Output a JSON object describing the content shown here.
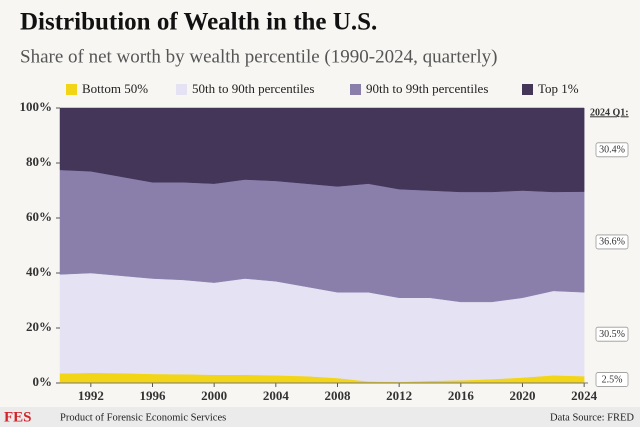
{
  "chart_data": {
    "type": "stacked-area",
    "title": "Distribution of Wealth in the U.S.",
    "subtitle": "Share of net worth by wealth percentile (1990-2024, quarterly)",
    "x": [
      1990,
      1992,
      1994,
      1996,
      1998,
      2000,
      2002,
      2004,
      2006,
      2008,
      2010,
      2012,
      2014,
      2016,
      2018,
      2020,
      2022,
      2024
    ],
    "xlim": [
      1990,
      2024.25
    ],
    "xticks": [
      1992,
      1996,
      2000,
      2004,
      2008,
      2012,
      2016,
      2020,
      2024
    ],
    "ylim": [
      0,
      100
    ],
    "yticks": [
      {
        "value": 0,
        "label": "0%"
      },
      {
        "value": 20,
        "label": "20%"
      },
      {
        "value": 40,
        "label": "40%"
      },
      {
        "value": 60,
        "label": "60%"
      },
      {
        "value": 80,
        "label": "80%"
      },
      {
        "value": 100,
        "label": "100%"
      }
    ],
    "series": [
      {
        "name": "Bottom 50%",
        "color": "#f3d517",
        "end_label": "2.5%",
        "values": [
          3.5,
          3.7,
          3.6,
          3.3,
          3.2,
          3.0,
          3.0,
          2.8,
          2.5,
          1.8,
          0.6,
          0.4,
          0.8,
          1.0,
          1.4,
          2.0,
          2.8,
          2.5
        ]
      },
      {
        "name": "50th to 90th percentiles",
        "color": "#e4e2f3",
        "end_label": "30.5%",
        "values": [
          36.0,
          36.3,
          35.4,
          34.7,
          34.3,
          33.5,
          35.0,
          34.2,
          32.5,
          31.2,
          32.4,
          30.6,
          30.2,
          28.5,
          28.1,
          29.0,
          30.7,
          30.5
        ]
      },
      {
        "name": "90th to 99th percentiles",
        "color": "#8a7fab",
        "end_label": "36.6%",
        "values": [
          38.0,
          37.0,
          36.0,
          35.0,
          35.5,
          36.0,
          36.0,
          36.5,
          37.5,
          38.5,
          39.5,
          39.5,
          39.0,
          40.0,
          40.0,
          39.0,
          36.0,
          36.6
        ]
      },
      {
        "name": "Top 1%",
        "color": "#433658",
        "end_label": "30.4%",
        "values": [
          22.5,
          23.0,
          25.0,
          27.0,
          27.0,
          27.5,
          26.0,
          26.5,
          27.5,
          28.5,
          27.5,
          29.5,
          30.0,
          30.5,
          30.5,
          30.0,
          30.5,
          30.4
        ]
      }
    ],
    "end_title": "2024 Q1:",
    "footer": {
      "logo": "FES",
      "credit": "Product of Forensic Economic Services",
      "source": "Data Source: FRED"
    }
  }
}
